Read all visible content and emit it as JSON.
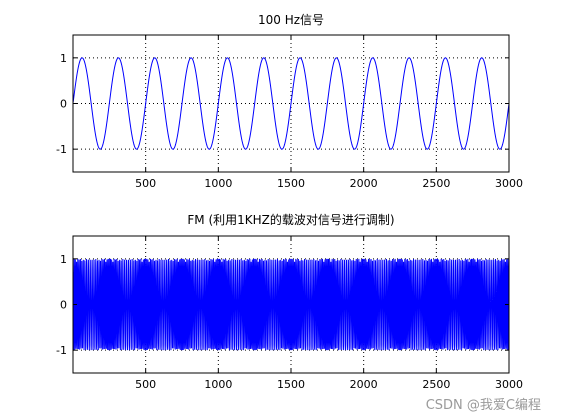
{
  "figure": {
    "background": "#ffffff",
    "line_color": "#0000ff",
    "watermark": "CSDN @我爱C编程"
  },
  "chart_data": [
    {
      "type": "line",
      "title": "100 Hz信号",
      "xlabel": "",
      "ylabel": "",
      "xlim": [
        0,
        3000
      ],
      "ylim": [
        -1.5,
        1.5
      ],
      "xticks": [
        500,
        1000,
        1500,
        2000,
        2500,
        3000
      ],
      "yticks": [
        -1,
        0,
        1
      ],
      "grid": true,
      "series": [
        {
          "kind": "sine",
          "amplitude": 1,
          "cycles": 12,
          "samples": 3000
        }
      ]
    },
    {
      "type": "line",
      "title": "FM (利用1KHZ的载波对信号进行调制)",
      "xlabel": "",
      "ylabel": "",
      "xlim": [
        0,
        3000
      ],
      "ylim": [
        -1.5,
        1.5
      ],
      "xticks": [
        500,
        1000,
        1500,
        2000,
        2500,
        3000
      ],
      "yticks": [
        -1,
        0,
        1
      ],
      "grid": true,
      "series": [
        {
          "kind": "fm",
          "amplitude": 1,
          "carrier_cycles_per_sample": 0.1,
          "modulation_cycles": 12,
          "modulation_index": 6,
          "samples": 3000
        }
      ]
    }
  ]
}
